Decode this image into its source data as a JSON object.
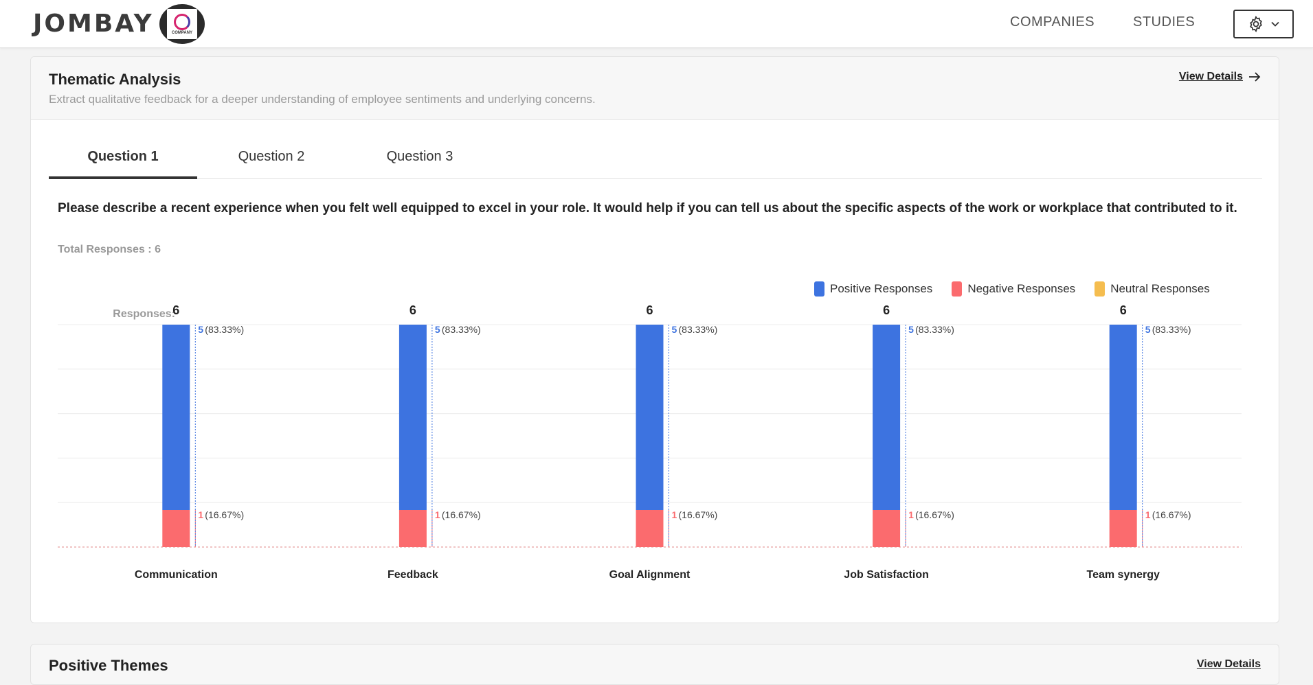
{
  "header": {
    "logo_text": "JOMBAY",
    "company_logo_text": "COMPANY",
    "nav": {
      "companies": "COMPANIES",
      "studies": "STUDIES"
    }
  },
  "card": {
    "title": "Thematic Analysis",
    "subtitle": "Extract qualitative feedback for a deeper understanding of employee sentiments and underlying concerns.",
    "view_details": "View Details"
  },
  "tabs": [
    {
      "label": "Question 1"
    },
    {
      "label": "Question 2"
    },
    {
      "label": "Question 3"
    }
  ],
  "question": {
    "text": "Please describe a recent experience when you felt well equipped to excel in your role. It would help if you can tell us about the specific aspects of the work or workplace that contributed to it.",
    "total_responses": "Total Responses : 6"
  },
  "chart_data": {
    "type": "bar",
    "stacked": true,
    "responses_label": "Responses:",
    "categories": [
      "Communication",
      "Feedback",
      "Goal Alignment",
      "Job Satisfaction",
      "Team synergy"
    ],
    "totals": [
      6,
      6,
      6,
      6,
      6
    ],
    "series": [
      {
        "name": "Positive Responses",
        "color": "#3d73e0",
        "values": [
          5,
          5,
          5,
          5,
          5
        ],
        "labels": [
          "(83.33%)",
          "(83.33%)",
          "(83.33%)",
          "(83.33%)",
          "(83.33%)"
        ]
      },
      {
        "name": "Negative Responses",
        "color": "#fb6b6e",
        "values": [
          1,
          1,
          1,
          1,
          1
        ],
        "labels": [
          "(16.67%)",
          "(16.67%)",
          "(16.67%)",
          "(16.67%)",
          "(16.67%)"
        ]
      },
      {
        "name": "Neutral Responses",
        "color": "#f5bd4f",
        "values": [
          0,
          0,
          0,
          0,
          0
        ],
        "labels": [
          "",
          "",
          "",
          "",
          ""
        ]
      }
    ],
    "ylim": [
      0,
      6
    ],
    "grid": true
  },
  "next_card": {
    "title": "Positive Themes",
    "view_details": "View Details"
  }
}
